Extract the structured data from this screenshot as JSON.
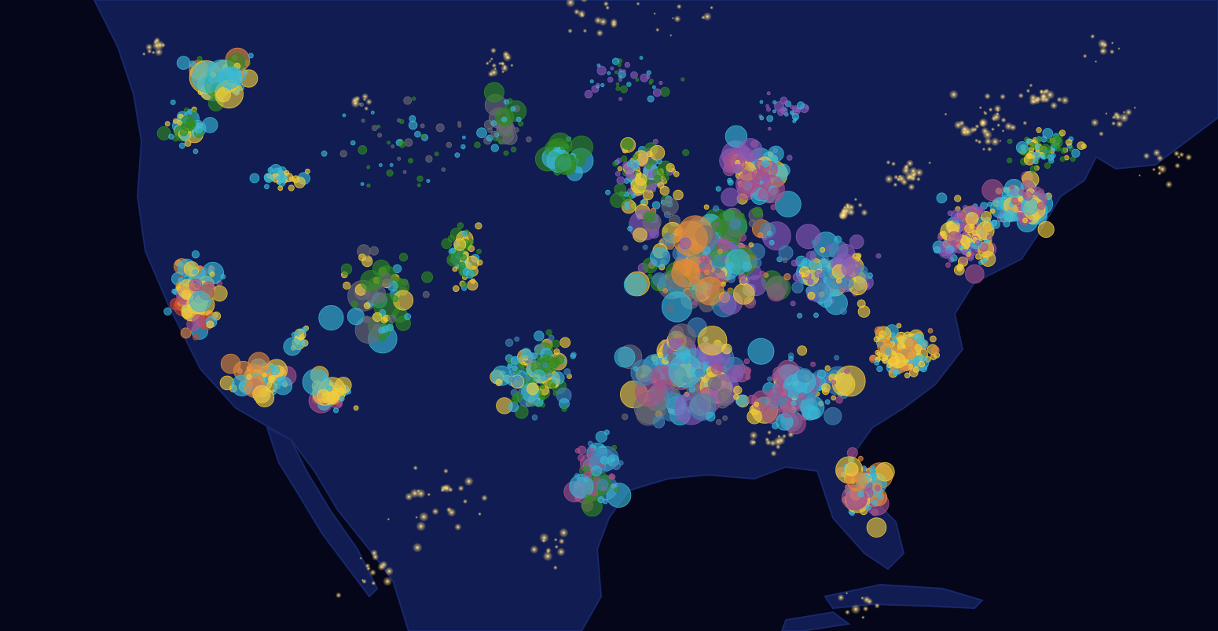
{
  "map": {
    "background_color": "#05061a",
    "land_color": "#101c52",
    "land_edge_color": "#18296a",
    "city_light_color": "#ffe9a6",
    "marker_opacity": 0.62,
    "marker_categories": [
      {
        "key": "cyan",
        "color": "#38b8d6"
      },
      {
        "key": "yellow",
        "color": "#f2cd3a"
      },
      {
        "key": "green",
        "color": "#2f8a1e"
      },
      {
        "key": "purple",
        "color": "#8a5bb8"
      },
      {
        "key": "magenta",
        "color": "#a8508a"
      },
      {
        "key": "gray",
        "color": "#6b6b72"
      },
      {
        "key": "orange",
        "color": "#e08a3a"
      },
      {
        "key": "red",
        "color": "#c8452e"
      },
      {
        "key": "steel",
        "color": "#3f86b4"
      }
    ]
  }
}
